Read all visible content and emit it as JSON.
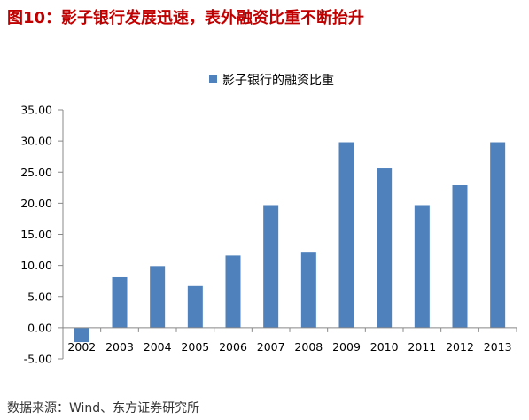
{
  "header": {
    "title": "图10：影子银行发展迅速，表外融资比重不断抬升"
  },
  "footer": {
    "source": "数据来源：Wind、东方证券研究所"
  },
  "chart_data": {
    "type": "bar",
    "categories": [
      "2002",
      "2003",
      "2004",
      "2005",
      "2006",
      "2007",
      "2008",
      "2009",
      "2010",
      "2011",
      "2012",
      "2013"
    ],
    "series": [
      {
        "name": "影子银行的融资比重",
        "values": [
          -2.3,
          8.1,
          9.9,
          6.7,
          11.6,
          19.7,
          12.2,
          29.8,
          25.6,
          19.7,
          22.9,
          29.8
        ],
        "color": "#4f81bd"
      }
    ],
    "yticks": [
      "-5.00",
      "0.00",
      "5.00",
      "10.00",
      "15.00",
      "20.00",
      "25.00",
      "30.00",
      "35.00"
    ],
    "ylim": [
      -5,
      35
    ],
    "grid": false,
    "legend": "top-center"
  }
}
